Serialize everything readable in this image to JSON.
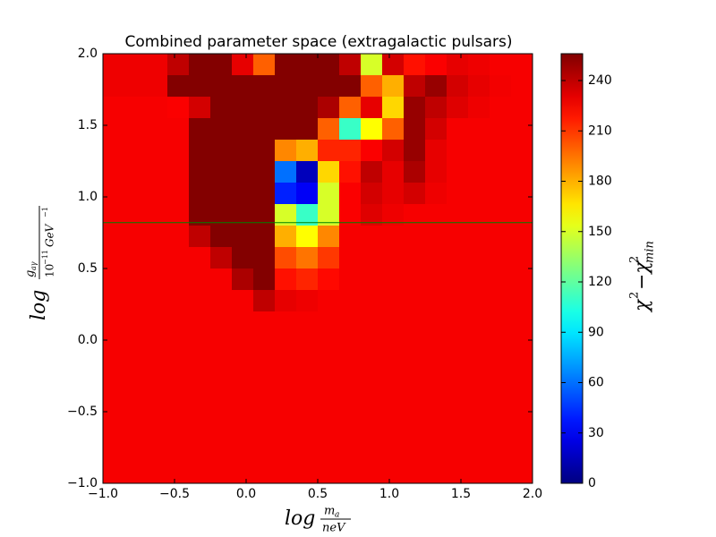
{
  "chart_data": {
    "type": "heatmap",
    "title": "Combined parameter space (extragalactic pulsars)",
    "xlabel": {
      "log": "log",
      "num": "m",
      "num_sub": "a",
      "den": "neV"
    },
    "ylabel": {
      "log": "log",
      "num": "g",
      "num_sub": "aγ",
      "den": "10",
      "den_sup": "−11",
      "den_unit": "GeV",
      "den_unit_sup": "−1"
    },
    "xlim": [
      -1,
      2
    ],
    "ylim": [
      -1,
      2
    ],
    "xticks": [
      {
        "value": -1,
        "label": "−1.0"
      },
      {
        "value": -0.5,
        "label": "−0.5"
      },
      {
        "value": 0,
        "label": "0.0"
      },
      {
        "value": 0.5,
        "label": "0.5"
      },
      {
        "value": 1,
        "label": "1.0"
      },
      {
        "value": 1.5,
        "label": "1.5"
      },
      {
        "value": 2,
        "label": "2.0"
      }
    ],
    "yticks": [
      {
        "value": -1,
        "label": "−1.0"
      },
      {
        "value": -0.5,
        "label": "−0.5"
      },
      {
        "value": 0,
        "label": "0.0"
      },
      {
        "value": 0.5,
        "label": "0.5"
      },
      {
        "value": 1,
        "label": "1.0"
      },
      {
        "value": 1.5,
        "label": "1.5"
      },
      {
        "value": 2,
        "label": "2.0"
      }
    ],
    "grid": false,
    "colormap": "jet",
    "z": [
      [
        228,
        228,
        228,
        240,
        255,
        255,
        230,
        200,
        255,
        255,
        255,
        240,
        150,
        235,
        220,
        225,
        230,
        228,
        226,
        226
      ],
      [
        228,
        228,
        228,
        255,
        255,
        255,
        255,
        255,
        255,
        255,
        255,
        255,
        200,
        180,
        240,
        250,
        235,
        230,
        227,
        226
      ],
      [
        226,
        226,
        226,
        225,
        235,
        255,
        255,
        255,
        255,
        255,
        245,
        200,
        230,
        170,
        250,
        240,
        232,
        228,
        226,
        226
      ],
      [
        226,
        226,
        226,
        226,
        255,
        255,
        255,
        255,
        255,
        255,
        200,
        110,
        160,
        200,
        250,
        235,
        226,
        226,
        226,
        226
      ],
      [
        226,
        226,
        226,
        226,
        255,
        255,
        255,
        255,
        190,
        180,
        215,
        215,
        225,
        235,
        250,
        230,
        226,
        226,
        226,
        226
      ],
      [
        226,
        226,
        226,
        226,
        255,
        255,
        255,
        255,
        60,
        15,
        170,
        220,
        240,
        230,
        245,
        230,
        226,
        226,
        226,
        226
      ],
      [
        226,
        226,
        226,
        226,
        255,
        255,
        255,
        255,
        40,
        30,
        150,
        225,
        235,
        230,
        235,
        228,
        226,
        226,
        226,
        226
      ],
      [
        226,
        226,
        226,
        226,
        255,
        255,
        255,
        255,
        150,
        110,
        150,
        225,
        232,
        228,
        226,
        226,
        226,
        226,
        226,
        226
      ],
      [
        226,
        226,
        226,
        226,
        240,
        255,
        255,
        255,
        180,
        160,
        190,
        226,
        226,
        226,
        226,
        226,
        226,
        226,
        226,
        226
      ],
      [
        226,
        226,
        226,
        226,
        226,
        240,
        255,
        255,
        205,
        195,
        210,
        226,
        226,
        226,
        226,
        226,
        226,
        226,
        226,
        226
      ],
      [
        226,
        226,
        226,
        226,
        226,
        226,
        245,
        255,
        220,
        215,
        222,
        226,
        226,
        226,
        226,
        226,
        226,
        226,
        226,
        226
      ],
      [
        226,
        226,
        226,
        226,
        226,
        226,
        226,
        240,
        230,
        228,
        226,
        226,
        226,
        226,
        226,
        226,
        226,
        226,
        226,
        226
      ],
      [
        226,
        226,
        226,
        226,
        226,
        226,
        226,
        226,
        226,
        226,
        226,
        226,
        226,
        226,
        226,
        226,
        226,
        226,
        226,
        226
      ],
      [
        226,
        226,
        226,
        226,
        226,
        226,
        226,
        226,
        226,
        226,
        226,
        226,
        226,
        226,
        226,
        226,
        226,
        226,
        226,
        226
      ],
      [
        226,
        226,
        226,
        226,
        226,
        226,
        226,
        226,
        226,
        226,
        226,
        226,
        226,
        226,
        226,
        226,
        226,
        226,
        226,
        226
      ],
      [
        226,
        226,
        226,
        226,
        226,
        226,
        226,
        226,
        226,
        226,
        226,
        226,
        226,
        226,
        226,
        226,
        226,
        226,
        226,
        226
      ],
      [
        226,
        226,
        226,
        226,
        226,
        226,
        226,
        226,
        226,
        226,
        226,
        226,
        226,
        226,
        226,
        226,
        226,
        226,
        226,
        226
      ],
      [
        226,
        226,
        226,
        226,
        226,
        226,
        226,
        226,
        226,
        226,
        226,
        226,
        226,
        226,
        226,
        226,
        226,
        226,
        226,
        226
      ],
      [
        226,
        226,
        226,
        226,
        226,
        226,
        226,
        226,
        226,
        226,
        226,
        226,
        226,
        226,
        226,
        226,
        226,
        226,
        226,
        226
      ],
      [
        226,
        226,
        226,
        226,
        226,
        226,
        226,
        226,
        226,
        226,
        226,
        226,
        226,
        226,
        226,
        226,
        226,
        226,
        226,
        226
      ]
    ],
    "hline": {
      "value": 0.82,
      "color": "#008000"
    },
    "colorbar": {
      "label": {
        "chi": "χ",
        "sup": "2",
        "minus_chi": "−χ",
        "sup2": "2",
        "sub": "min"
      },
      "lim": [
        0,
        256
      ],
      "ticks": [
        0,
        30,
        60,
        90,
        120,
        150,
        180,
        210,
        240
      ]
    }
  }
}
